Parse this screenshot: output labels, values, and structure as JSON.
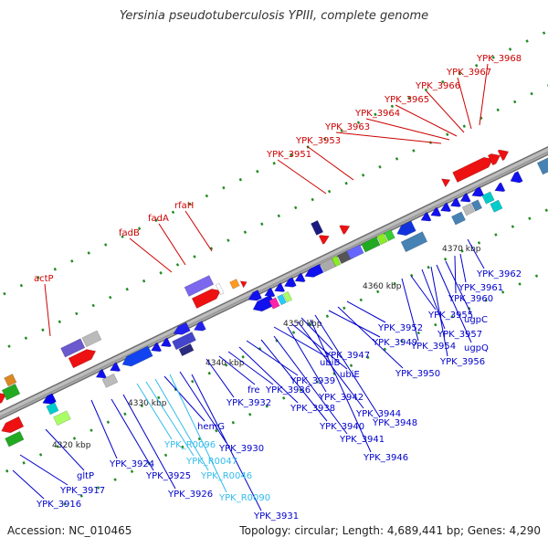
{
  "title": "Yersinia pseudotuberculosis YPIII, complete genome",
  "footer": {
    "accession": "Accession: NC_010465",
    "summary": "Topology: circular; Length: 4,689,441 bp; Genes: 4,290"
  },
  "colors": {
    "backbone": "#8c8c8c",
    "forward_label": "#cc0000",
    "reverse_label": "#0000cc",
    "rna_label": "#33bbee",
    "dots": "#228b22"
  },
  "ticks": [
    "4320 kbp",
    "4330 kbp",
    "4340 kbp",
    "4350 kbp",
    "4360 kbp",
    "4370 kbp"
  ],
  "forward_genes": [
    "actP",
    "fadB",
    "fadA",
    "rfaH",
    "YPK_3951",
    "YPK_3953",
    "YPK_3963",
    "YPK_3964",
    "YPK_3965",
    "YPK_3966",
    "YPK_3967",
    "YPK_3968"
  ],
  "reverse_genes": [
    "YPK_3916",
    "YPK_3917",
    "gltP",
    "YPK_3924",
    "YPK_3925",
    "YPK_3926",
    "hemG",
    "YPK_3930",
    "YPK_3931",
    "YPK_3932",
    "fre",
    "YPK_3936",
    "YPK_3938",
    "YPK_3939",
    "ubiB",
    "YPK_3940",
    "YPK_3941",
    "YPK_3942",
    "ubiE",
    "YPK_3944",
    "YPK_3946",
    "YPK_3947",
    "YPK_3948",
    "YPK_3949",
    "YPK_3950",
    "YPK_3952",
    "YPK_3954",
    "YPK_3955",
    "YPK_3956",
    "ugpQ",
    "ugpC",
    "YPK_3957",
    "YPK_3960",
    "YPK_3961",
    "YPK_3962"
  ],
  "rna_genes": [
    "YPK_R0096",
    "YPK_R0047",
    "YPK_R0046",
    "YPK_R0090"
  ]
}
